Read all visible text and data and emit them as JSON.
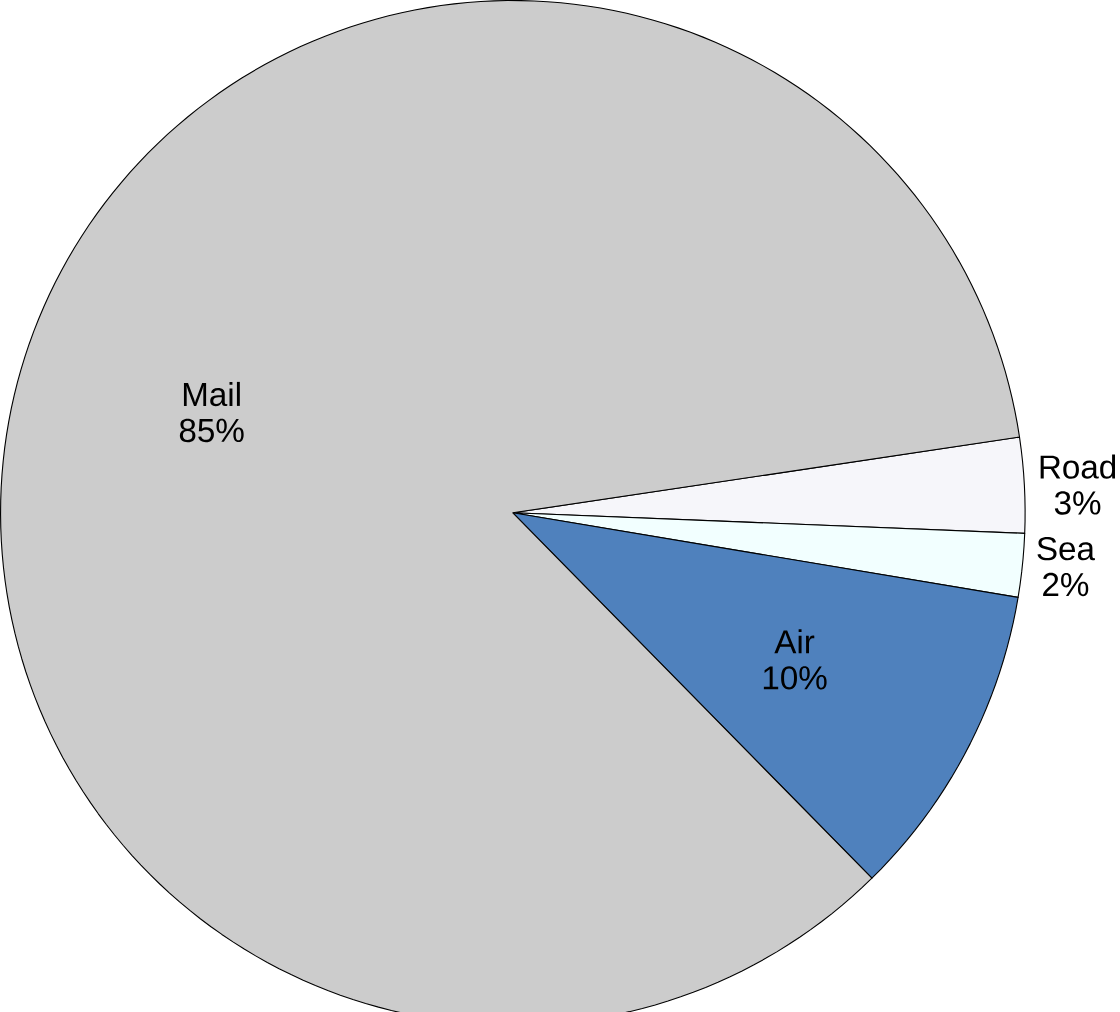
{
  "chart_data": {
    "type": "pie",
    "categories": [
      "Road",
      "Sea",
      "Air",
      "Mail"
    ],
    "values": [
      3,
      2,
      10,
      85
    ],
    "colors": [
      "#f6f6fa",
      "#f2ffff",
      "#4f81bd",
      "#cccccc"
    ],
    "value_labels": [
      "3%",
      "2%",
      "10%",
      "85%"
    ]
  }
}
